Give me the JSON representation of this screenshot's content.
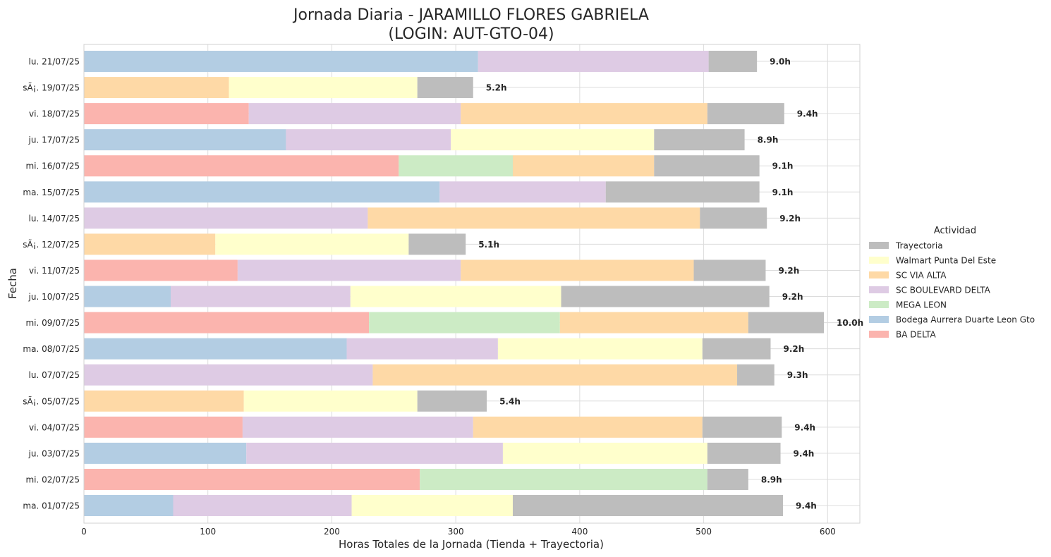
{
  "chart_data": {
    "type": "bar",
    "orientation": "horizontal",
    "stacked": true,
    "title": "Jornada Diaria - JARAMILLO FLORES GABRIELA",
    "subtitle": "(LOGIN: AUT-GTO-04)",
    "xlabel": "Horas Totales de la Jornada (Tienda + Trayectoria)",
    "ylabel": "Fecha",
    "xlim": [
      0,
      626
    ],
    "xticks": [
      0,
      100,
      200,
      300,
      400,
      500,
      600
    ],
    "grid": true,
    "legend": {
      "title": "Actividad",
      "position": "center-right"
    },
    "categories": [
      "lu. 21/07/25",
      "sÃ¡. 19/07/25",
      "vi. 18/07/25",
      "ju. 17/07/25",
      "mi. 16/07/25",
      "ma. 15/07/25",
      "lu. 14/07/25",
      "sÃ¡. 12/07/25",
      "vi. 11/07/25",
      "ju. 10/07/25",
      "mi. 09/07/25",
      "ma. 08/07/25",
      "lu. 07/07/25",
      "sÃ¡. 05/07/25",
      "vi. 04/07/25",
      "ju. 03/07/25",
      "mi. 02/07/25",
      "ma. 01/07/25"
    ],
    "bar_labels": [
      "9.0h",
      "5.2h",
      "9.4h",
      "8.9h",
      "9.1h",
      "9.1h",
      "9.2h",
      "5.1h",
      "9.2h",
      "9.2h",
      "10.0h",
      "9.2h",
      "9.3h",
      "5.4h",
      "9.4h",
      "9.4h",
      "8.9h",
      "9.4h"
    ],
    "series": [
      {
        "name": "BA DELTA",
        "color": "#fbb4ae",
        "values": [
          0,
          0,
          133,
          0,
          254,
          0,
          0,
          0,
          124,
          0,
          230,
          0,
          0,
          0,
          128,
          0,
          271,
          0
        ]
      },
      {
        "name": "Bodega Aurrera Duarte Leon Gto",
        "color": "#b3cde3",
        "values": [
          318,
          0,
          0,
          163,
          0,
          287,
          0,
          0,
          0,
          70,
          0,
          212,
          0,
          0,
          0,
          131,
          0,
          72
        ]
      },
      {
        "name": "MEGA LEON",
        "color": "#ccebc5",
        "values": [
          0,
          0,
          0,
          0,
          92,
          0,
          0,
          0,
          0,
          0,
          154,
          0,
          0,
          0,
          0,
          0,
          232,
          0
        ]
      },
      {
        "name": "SC BOULEVARD DELTA",
        "color": "#decbe4",
        "values": [
          186,
          0,
          171,
          133,
          0,
          134,
          229,
          0,
          180,
          145,
          0,
          122,
          233,
          0,
          186,
          207,
          0,
          144
        ]
      },
      {
        "name": "SC VIA ALTA",
        "color": "#fed9a6",
        "values": [
          0,
          117,
          199,
          0,
          114,
          0,
          268,
          106,
          188,
          0,
          152,
          0,
          294,
          129,
          185,
          0,
          0,
          0
        ]
      },
      {
        "name": "Walmart Punta Del Este",
        "color": "#ffffcc",
        "values": [
          0,
          152,
          0,
          164,
          0,
          0,
          0,
          156,
          0,
          170,
          0,
          165,
          0,
          140,
          0,
          165,
          0,
          130
        ]
      },
      {
        "name": "Trayectoria",
        "color": "#bdbdbd",
        "values": [
          39,
          45,
          62,
          73,
          85,
          124,
          54,
          46,
          58,
          168,
          61,
          55,
          30,
          56,
          64,
          59,
          33,
          218
        ]
      }
    ]
  }
}
